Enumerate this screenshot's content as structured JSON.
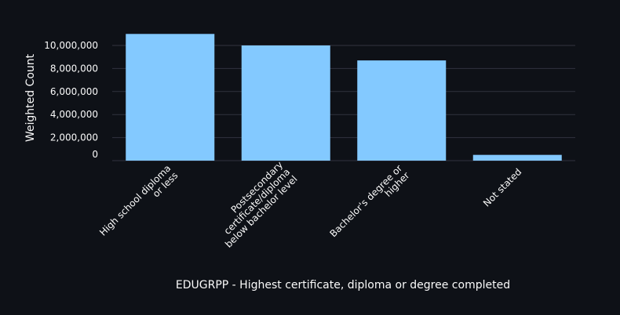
{
  "chart_data": {
    "type": "bar",
    "categories": [
      [
        "High school diploma",
        "or less"
      ],
      [
        "Postsecondary",
        "certificate/diploma",
        "below bachelor level"
      ],
      [
        "Bachelor's degree or",
        "higher"
      ],
      [
        "Not stated"
      ]
    ],
    "values": [
      11000000,
      10000000,
      8700000,
      500000
    ],
    "xlabel": "EDUGRPP - Highest certificate, diploma or degree completed",
    "ylabel": "Weighted Count",
    "ylim": [
      0,
      11500000
    ],
    "yticks": [
      0,
      2000000,
      4000000,
      6000000,
      8000000,
      10000000
    ],
    "ytick_labels": [
      "0",
      "2,000,000",
      "4,000,000",
      "6,000,000",
      "8,000,000",
      "10,000,000"
    ],
    "grid": true,
    "colors": {
      "bar": "#83c9ff",
      "background": "#0e1117",
      "grid": "#31333f",
      "text": "#fafafa"
    }
  }
}
